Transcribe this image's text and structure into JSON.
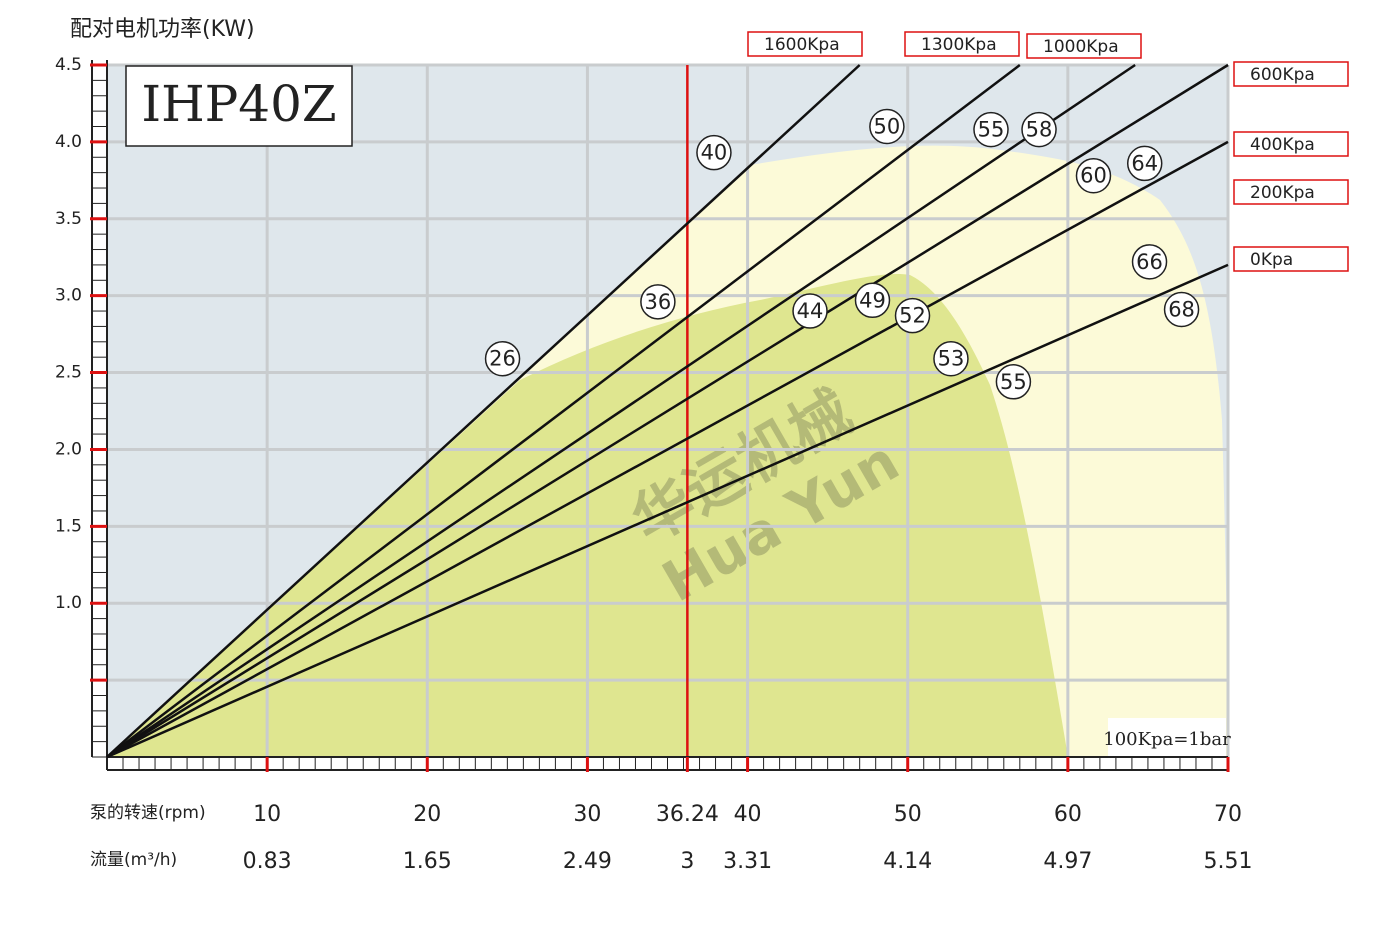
{
  "chart_data": {
    "type": "line",
    "title": "配对电机功率(KW)",
    "model": "IHP40Z",
    "x_label": "泵的转速(rpm)",
    "flow_label": "流量(m³/h)",
    "note": "100Kpa=1bar",
    "watermark": [
      "华运机械",
      "Hua Yun"
    ],
    "xlim": [
      0,
      70
    ],
    "ylim": [
      0,
      4.5
    ],
    "xticks": [
      10,
      20,
      30,
      36.24,
      40,
      50,
      60,
      70
    ],
    "flow_values": [
      0.83,
      1.65,
      2.49,
      3,
      3.31,
      4.14,
      4.97,
      5.51
    ],
    "yticks": [
      {
        "value": 1,
        "label": "1.0"
      },
      1.5,
      {
        "value": 2,
        "label": "2.0"
      },
      2.5,
      {
        "value": 3,
        "label": "3.0"
      },
      3.5,
      {
        "value": 4,
        "label": "4.0"
      },
      4.5
    ],
    "ytick_marks": [
      0.5
    ],
    "highlight_x": 36.24,
    "grid": true,
    "series": [
      {
        "name": "1600Kpa",
        "color": "#111111",
        "x": [
          0,
          47
        ],
        "values": [
          0,
          4.5
        ]
      },
      {
        "name": "1300Kpa",
        "color": "#111111",
        "x": [
          0,
          57
        ],
        "values": [
          0,
          4.5
        ]
      },
      {
        "name": "1000Kpa",
        "color": "#111111",
        "x": [
          0,
          64.2
        ],
        "values": [
          0,
          4.5
        ]
      },
      {
        "name": "600Kpa",
        "color": "#111111",
        "x": [
          0,
          70
        ],
        "values": [
          0,
          4.5
        ]
      },
      {
        "name": "400Kpa",
        "color": "#111111",
        "x": [
          0,
          70
        ],
        "values": [
          0,
          4.0
        ]
      },
      {
        "name": "200Kpa",
        "color": "#111111",
        "x": null,
        "values": null
      },
      {
        "name": "0Kpa",
        "color": "#111111",
        "x": [
          0,
          70
        ],
        "values": [
          0,
          3.2
        ]
      }
    ],
    "markers": {
      "x": [
        24.7,
        37.9,
        34.4,
        48.7,
        43.9,
        55.2,
        58.2,
        47.8,
        50.3,
        61.6,
        64.8,
        65.1,
        52.7,
        67.1,
        56.6
      ],
      "y": [
        2.59,
        3.93,
        2.96,
        4.1,
        2.9,
        4.08,
        4.08,
        2.97,
        2.87,
        3.78,
        3.86,
        3.22,
        2.59,
        2.91,
        2.44
      ],
      "labels": [
        26,
        40,
        36,
        50,
        44,
        55,
        58,
        49,
        52,
        60,
        64,
        66,
        53,
        68,
        55
      ]
    }
  }
}
